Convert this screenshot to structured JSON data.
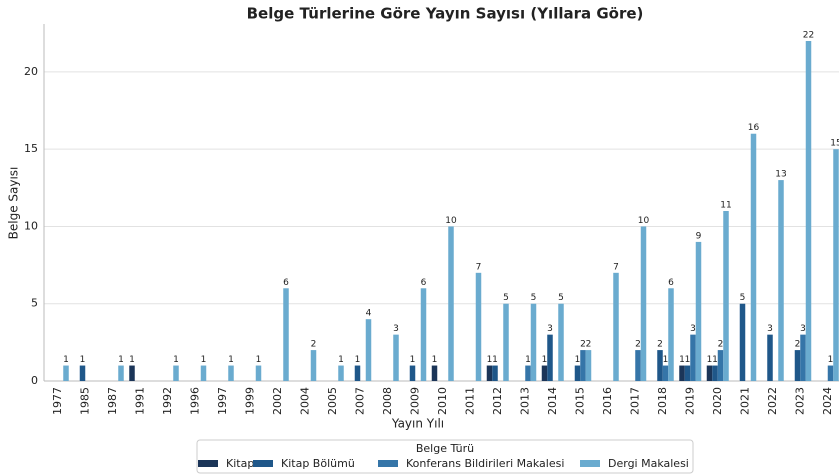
{
  "chart_data": {
    "type": "bar",
    "title": "Belge Türlerine Göre Yayın Sayısı (Yıllara Göre)",
    "x_label": "Yayın Yılı",
    "y_label": "Belge Sayısı",
    "legend_title": "Belge Türü",
    "legend": "lower center",
    "grid": true,
    "categories": [
      "1977",
      "1985",
      "1987",
      "1991",
      "1992",
      "1996",
      "1997",
      "1999",
      "2002",
      "2004",
      "2005",
      "2007",
      "2008",
      "2009",
      "2010",
      "2011",
      "2012",
      "2013",
      "2014",
      "2015",
      "2016",
      "2017",
      "2018",
      "2019",
      "2020",
      "2021",
      "2022",
      "2023",
      "2024"
    ],
    "series": [
      {
        "name": "Kitap",
        "color": "#1b3558",
        "values": [
          null,
          null,
          null,
          1,
          null,
          null,
          null,
          null,
          null,
          null,
          null,
          null,
          null,
          null,
          1,
          null,
          1,
          null,
          1,
          null,
          null,
          null,
          null,
          1,
          1,
          null,
          null,
          null,
          null
        ]
      },
      {
        "name": "Kitap Bölümü",
        "color": "#1f5789",
        "values": [
          null,
          1,
          null,
          null,
          null,
          null,
          null,
          null,
          null,
          null,
          null,
          1,
          null,
          1,
          null,
          null,
          1,
          null,
          3,
          1,
          null,
          null,
          2,
          1,
          1,
          5,
          3,
          2,
          null
        ]
      },
      {
        "name": "Konferans Bildirileri Makalesi",
        "color": "#3575a8",
        "values": [
          null,
          null,
          null,
          null,
          null,
          null,
          null,
          null,
          null,
          null,
          null,
          null,
          null,
          null,
          null,
          null,
          null,
          1,
          null,
          2,
          null,
          2,
          1,
          3,
          2,
          null,
          null,
          3,
          1
        ]
      },
      {
        "name": "Dergi Makalesi",
        "color": "#6aabcf",
        "values": [
          1,
          null,
          1,
          null,
          1,
          1,
          1,
          1,
          6,
          2,
          1,
          4,
          3,
          6,
          10,
          7,
          5,
          5,
          5,
          2,
          7,
          10,
          6,
          9,
          11,
          16,
          13,
          22,
          15
        ]
      }
    ],
    "ylim": [
      0,
      23.1
    ],
    "yticks": [
      0,
      5,
      10,
      15,
      20
    ]
  }
}
